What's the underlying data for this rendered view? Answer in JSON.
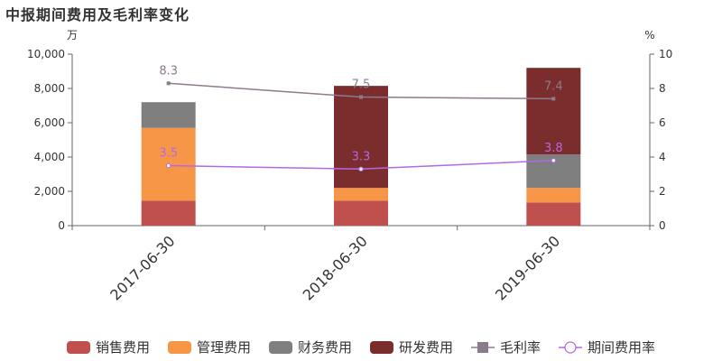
{
  "chart_data": {
    "type": "bar",
    "title": "中报期间费用及毛利率变化",
    "categories": [
      "2017-06-30",
      "2018-06-30",
      "2019-06-30"
    ],
    "y_left": {
      "unit": "万",
      "range": [
        0,
        10000
      ],
      "ticks": [
        "0",
        "2,000",
        "4,000",
        "6,000",
        "8,000",
        "10,000"
      ]
    },
    "y_right": {
      "unit": "%",
      "range": [
        0,
        10
      ],
      "ticks": [
        "0",
        "2",
        "4",
        "6",
        "8",
        "10"
      ]
    },
    "grid": false,
    "legend_position": "bottom",
    "bar_series": [
      {
        "name": "销售费用",
        "values": [
          1450,
          1450,
          1350
        ],
        "color": "#c0504d"
      },
      {
        "name": "管理费用",
        "values": [
          4250,
          750,
          850
        ],
        "color": "#f79646"
      },
      {
        "name": "财务费用",
        "values": [
          1500,
          0,
          1950
        ],
        "color": "#7f7f7f"
      },
      {
        "name": "研发费用",
        "values": [
          0,
          5950,
          5050
        ],
        "color": "#7b2c2c"
      }
    ],
    "line_series": [
      {
        "name": "毛利率",
        "values": [
          8.3,
          7.5,
          7.4
        ],
        "labels": [
          "8.3",
          "7.5",
          "7.4"
        ],
        "color": "#8c7b8c",
        "marker": "square"
      },
      {
        "name": "期间费用率",
        "values": [
          3.5,
          3.3,
          3.8
        ],
        "labels": [
          "3.5",
          "3.3",
          "3.8"
        ],
        "color": "#b469e4",
        "marker": "circle"
      }
    ]
  }
}
